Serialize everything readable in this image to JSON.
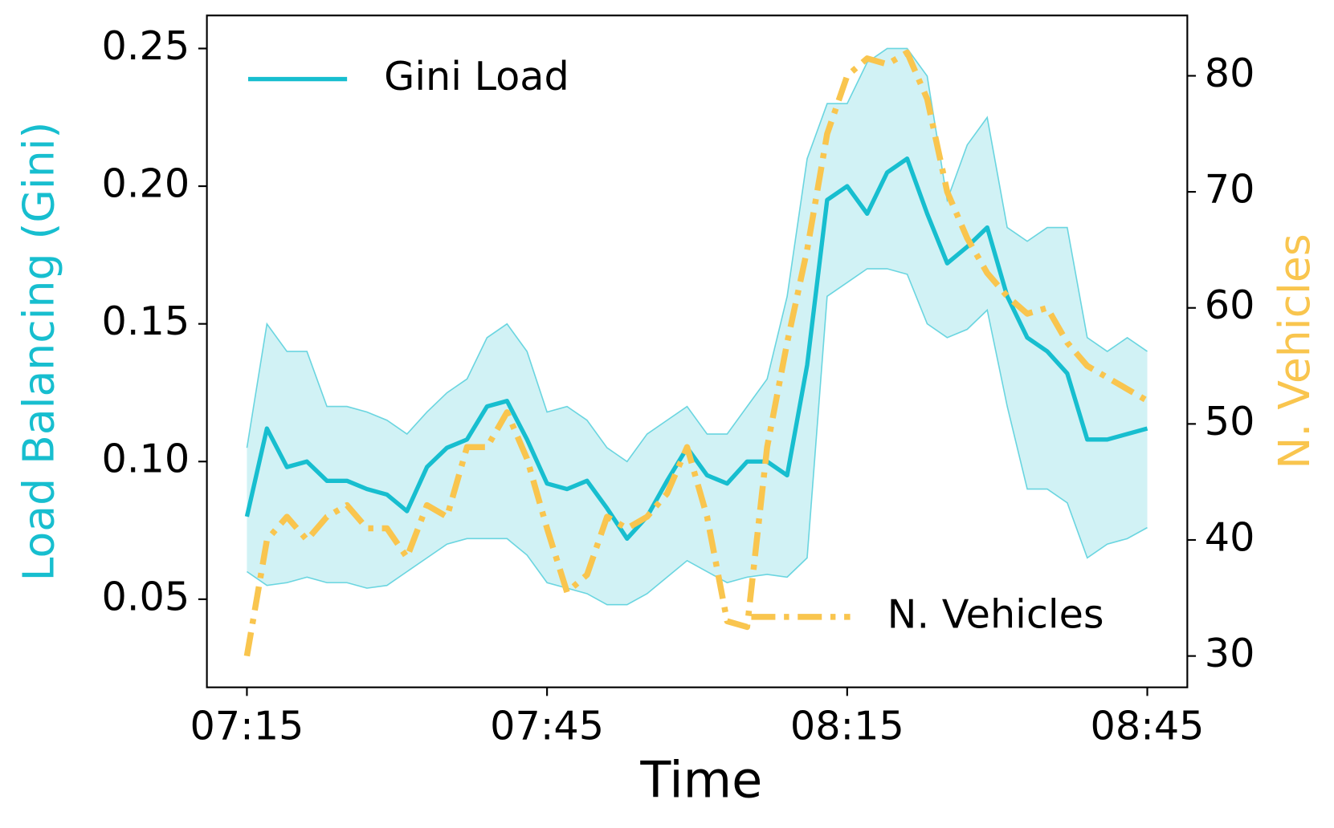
{
  "chart_data": {
    "type": "line",
    "xlabel": "Time",
    "ylabel": "Load Balancing (Gini)",
    "y2label": "N. Vehicles",
    "x": [
      "07:15",
      "07:17",
      "07:19",
      "07:21",
      "07:23",
      "07:25",
      "07:27",
      "07:29",
      "07:31",
      "07:33",
      "07:35",
      "07:37",
      "07:39",
      "07:41",
      "07:43",
      "07:45",
      "07:47",
      "07:49",
      "07:51",
      "07:53",
      "07:55",
      "07:57",
      "07:59",
      "08:01",
      "08:03",
      "08:05",
      "08:07",
      "08:09",
      "08:11",
      "08:13",
      "08:15",
      "08:17",
      "08:19",
      "08:21",
      "08:23",
      "08:25",
      "08:27",
      "08:29",
      "08:31",
      "08:33",
      "08:35",
      "08:37",
      "08:39",
      "08:41",
      "08:43",
      "08:45"
    ],
    "xlim": [
      "07:11",
      "08:49"
    ],
    "xticks": [
      "07:15",
      "07:45",
      "08:15",
      "08:45"
    ],
    "ylim": [
      0.018,
      0.262
    ],
    "yticks": [
      0.05,
      {
        "value": 0.1,
        "label": "0.10"
      },
      0.15,
      {
        "value": 0.2,
        "label": "0.20"
      },
      0.25
    ],
    "y2lim": [
      27.3,
      85.2
    ],
    "y2ticks": [
      30,
      40,
      50,
      60,
      70,
      80
    ],
    "series": [
      {
        "name": "Gini Load",
        "color": "#17becf",
        "style": "solid",
        "legend_loc": "upper left",
        "values": [
          0.08,
          0.112,
          0.098,
          0.1,
          0.093,
          0.093,
          0.09,
          0.088,
          0.082,
          0.098,
          0.105,
          0.108,
          0.12,
          0.122,
          0.108,
          0.092,
          0.09,
          0.093,
          0.083,
          0.072,
          0.08,
          0.093,
          0.105,
          0.095,
          0.092,
          0.1,
          0.1,
          0.095,
          0.135,
          0.195,
          0.2,
          0.19,
          0.205,
          0.21,
          0.19,
          0.172,
          0.178,
          0.185,
          0.16,
          0.145,
          0.14,
          0.132,
          0.108,
          0.108,
          0.11,
          0.112
        ],
        "lower": [
          0.06,
          0.055,
          0.056,
          0.058,
          0.056,
          0.056,
          0.054,
          0.055,
          0.06,
          0.065,
          0.07,
          0.072,
          0.072,
          0.072,
          0.066,
          0.056,
          0.054,
          0.052,
          0.048,
          0.048,
          0.052,
          0.058,
          0.064,
          0.06,
          0.056,
          0.058,
          0.059,
          0.058,
          0.065,
          0.16,
          0.165,
          0.17,
          0.17,
          0.168,
          0.15,
          0.145,
          0.148,
          0.155,
          0.12,
          0.09,
          0.09,
          0.085,
          0.065,
          0.07,
          0.072,
          0.076
        ],
        "upper": [
          0.105,
          0.15,
          0.14,
          0.14,
          0.12,
          0.12,
          0.118,
          0.115,
          0.11,
          0.118,
          0.125,
          0.13,
          0.145,
          0.15,
          0.14,
          0.118,
          0.12,
          0.115,
          0.105,
          0.1,
          0.11,
          0.115,
          0.12,
          0.11,
          0.11,
          0.12,
          0.13,
          0.16,
          0.21,
          0.23,
          0.23,
          0.245,
          0.25,
          0.25,
          0.24,
          0.195,
          0.215,
          0.225,
          0.185,
          0.18,
          0.185,
          0.185,
          0.145,
          0.14,
          0.145,
          0.14
        ]
      },
      {
        "name": "N. Vehicles",
        "color": "#f9c54e",
        "style": "dashdot",
        "axis": "y2",
        "legend_loc": "lower right",
        "values": [
          30,
          40,
          42,
          40,
          42,
          43,
          41,
          41,
          38.5,
          43,
          42,
          48,
          48,
          51,
          47,
          41,
          35.5,
          37,
          42,
          41,
          42,
          44,
          48,
          42,
          33,
          32.5,
          48,
          57,
          65,
          75,
          80,
          81.5,
          81,
          82,
          78,
          70,
          66,
          63,
          61,
          59.5,
          60,
          57,
          55,
          54,
          53,
          52
        ]
      }
    ]
  }
}
